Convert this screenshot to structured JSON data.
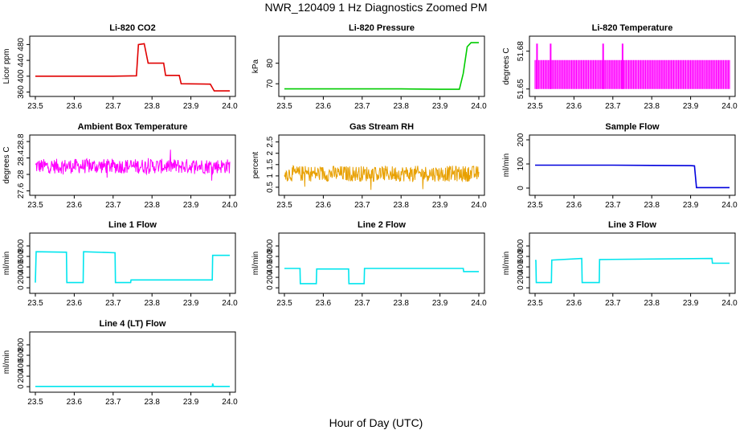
{
  "page": {
    "title": "NWR_120409  1 Hz Diagnostics Zoomed PM",
    "xlabel": "Hour of Day (UTC)"
  },
  "chart_data": [
    {
      "type": "line",
      "title": "Li-820 CO2",
      "ylabel": "Licor ppm",
      "color": "#e00000",
      "xlim": [
        23.5,
        24.0
      ],
      "ylim": [
        355,
        495
      ],
      "xticks": [
        "23.5",
        "23.6",
        "23.7",
        "23.8",
        "23.9",
        "24.0"
      ],
      "yticks": [
        360,
        400,
        440,
        480
      ],
      "x": [
        23.5,
        23.6,
        23.7,
        23.76,
        23.765,
        23.78,
        23.79,
        23.8,
        23.83,
        23.835,
        23.87,
        23.875,
        23.95,
        23.96,
        24.0
      ],
      "y": [
        400,
        400,
        400,
        401,
        480,
        482,
        433,
        433,
        433,
        402,
        402,
        381,
        380,
        363,
        363
      ]
    },
    {
      "type": "line",
      "title": "Li-820 Pressure",
      "ylabel": "kPa",
      "color": "#00cc00",
      "xlim": [
        23.5,
        24.0
      ],
      "ylim": [
        65,
        92
      ],
      "xticks": [
        "23.5",
        "23.6",
        "23.7",
        "23.8",
        "23.9",
        "24.0"
      ],
      "yticks": [
        70,
        80
      ],
      "x": [
        23.5,
        23.6,
        23.7,
        23.8,
        23.9,
        23.95,
        23.96,
        23.97,
        23.98,
        24.0
      ],
      "y": [
        67.5,
        67.5,
        67.5,
        67.5,
        67.3,
        67.3,
        75,
        88,
        90,
        90
      ]
    },
    {
      "type": "line",
      "title": "Li-820 Temperature",
      "ylabel": "degrees C",
      "color": "#ff00ff",
      "xlim": [
        23.5,
        24.0
      ],
      "ylim": [
        51.646,
        51.69
      ],
      "xticks": [
        "23.5",
        "23.6",
        "23.7",
        "23.8",
        "23.9",
        "24.0"
      ],
      "yticks": [
        51.65,
        51.68
      ],
      "levels": [
        51.65,
        51.673
      ],
      "spikes": [
        23.505,
        23.54,
        23.675,
        23.725
      ],
      "spike_value": 51.686
    },
    {
      "type": "line",
      "title": "Ambient Box Temperature",
      "ylabel": "degrees C",
      "color": "#ff00ff",
      "xlim": [
        23.5,
        24.0
      ],
      "ylim": [
        27.55,
        28.9
      ],
      "xticks": [
        "23.5",
        "23.6",
        "23.7",
        "23.8",
        "23.9",
        "24.0"
      ],
      "yticks": [
        27.6,
        28.0,
        28.4,
        28.8
      ],
      "mean": 28.2,
      "noise": 0.18
    },
    {
      "type": "line",
      "title": "Gas Stream RH",
      "ylabel": "percent",
      "color": "#e8a000",
      "xlim": [
        23.5,
        24.0
      ],
      "ylim": [
        0.25,
        2.7
      ],
      "xticks": [
        "23.5",
        "23.6",
        "23.7",
        "23.8",
        "23.9",
        "24.0"
      ],
      "yticks": [
        0.5,
        1.0,
        1.5,
        2.0,
        2.5
      ],
      "mean": 1.1,
      "noise": 0.35
    },
    {
      "type": "line",
      "title": "Sample Flow",
      "ylabel": "ml/min",
      "color": "#0000dd",
      "xlim": [
        23.5,
        24.0
      ],
      "ylim": [
        -20,
        210
      ],
      "xticks": [
        "23.5",
        "23.6",
        "23.7",
        "23.8",
        "23.9",
        "24.0"
      ],
      "yticks": [
        0,
        100,
        200
      ],
      "x": [
        23.5,
        23.6,
        23.7,
        23.8,
        23.9,
        23.91,
        23.915,
        24.0
      ],
      "y": [
        95,
        95,
        95,
        94,
        93,
        92,
        2,
        2
      ]
    },
    {
      "type": "line",
      "title": "Line 1 Flow",
      "ylabel": "ml/min",
      "color": "#00e5ee",
      "xlim": [
        23.5,
        24.0
      ],
      "ylim": [
        -60,
        1000
      ],
      "xticks": [
        "23.5",
        "23.6",
        "23.7",
        "23.8",
        "23.9",
        "24.0"
      ],
      "yticks": [
        0,
        200,
        400,
        600,
        800
      ],
      "x": [
        23.5,
        23.502,
        23.58,
        23.581,
        23.623,
        23.624,
        23.705,
        23.706,
        23.745,
        23.746,
        23.955,
        23.956,
        24.0
      ],
      "y": [
        100,
        690,
        680,
        100,
        100,
        690,
        670,
        100,
        100,
        150,
        150,
        620,
        620
      ]
    },
    {
      "type": "line",
      "title": "Line 2 Flow",
      "ylabel": "ml/min",
      "color": "#00e5ee",
      "xlim": [
        23.5,
        24.0
      ],
      "ylim": [
        -60,
        1000
      ],
      "xticks": [
        "23.5",
        "23.6",
        "23.7",
        "23.8",
        "23.9",
        "24.0"
      ],
      "yticks": [
        0,
        200,
        400,
        600,
        800
      ],
      "x": [
        23.5,
        23.54,
        23.541,
        23.582,
        23.583,
        23.665,
        23.666,
        23.705,
        23.706,
        23.96,
        23.961,
        24.0
      ],
      "y": [
        370,
        370,
        80,
        80,
        360,
        360,
        80,
        80,
        370,
        370,
        310,
        310
      ]
    },
    {
      "type": "line",
      "title": "Line 3 Flow",
      "ylabel": "ml/min",
      "color": "#00e5ee",
      "xlim": [
        23.5,
        24.0
      ],
      "ylim": [
        -60,
        1000
      ],
      "xticks": [
        "23.5",
        "23.6",
        "23.7",
        "23.8",
        "23.9",
        "24.0"
      ],
      "yticks": [
        0,
        200,
        400,
        600,
        800
      ],
      "x": [
        23.5,
        23.502,
        23.503,
        23.542,
        23.543,
        23.62,
        23.621,
        23.665,
        23.666,
        23.955,
        23.956,
        24.0
      ],
      "y": [
        520,
        520,
        100,
        100,
        530,
        560,
        100,
        100,
        540,
        560,
        470,
        470
      ]
    },
    {
      "type": "line",
      "title": "Line 4 (LT) Flow",
      "ylabel": "ml/min",
      "color": "#00e5ee",
      "xlim": [
        23.5,
        24.0
      ],
      "ylim": [
        -60,
        1000
      ],
      "xticks": [
        "23.5",
        "23.6",
        "23.7",
        "23.8",
        "23.9",
        "24.0"
      ],
      "yticks": [
        0,
        200,
        400,
        600,
        800
      ],
      "x": [
        23.5,
        23.955,
        23.956,
        23.958,
        23.96,
        24.0
      ],
      "y": [
        5,
        5,
        60,
        5,
        5,
        5
      ]
    }
  ]
}
